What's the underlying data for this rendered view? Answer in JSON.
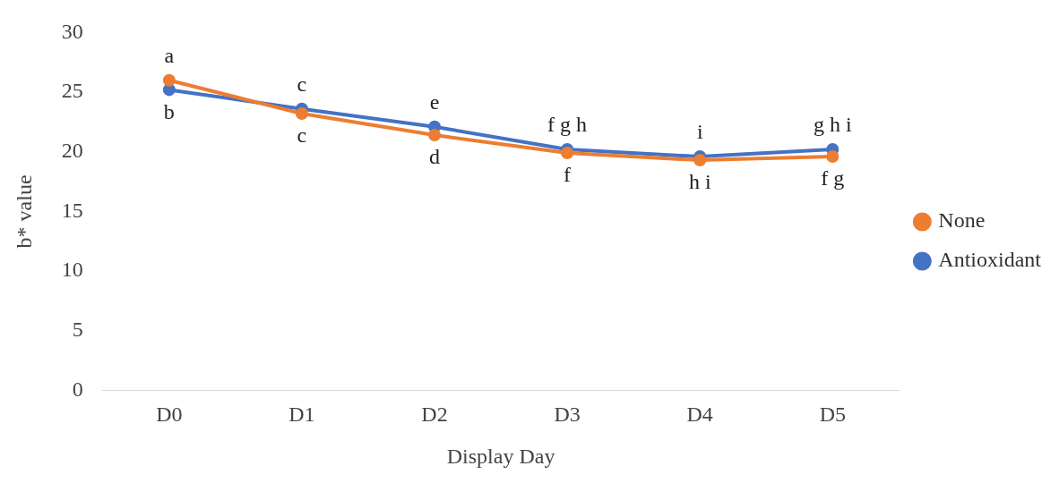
{
  "chart_data": {
    "type": "line",
    "xlabel": "Display Day",
    "ylabel": "b* value",
    "categories": [
      "D0",
      "D1",
      "D2",
      "D3",
      "D4",
      "D5"
    ],
    "series": [
      {
        "name": "Antioxidant",
        "color": "#4472c4",
        "values": [
          25.2,
          23.6,
          22.1,
          20.2,
          19.6,
          20.2
        ]
      },
      {
        "name": "None",
        "color": "#ed7d31",
        "values": [
          26.0,
          23.2,
          21.4,
          19.9,
          19.3,
          19.6
        ]
      }
    ],
    "ylim": [
      0,
      30
    ],
    "yticks": [
      0,
      5,
      10,
      15,
      20,
      25,
      30
    ],
    "grid": false,
    "legend": "right",
    "marker": "circle",
    "line_style": "solid",
    "annotations": [
      {
        "text": "a",
        "x": "D0",
        "y": 26.0
      },
      {
        "text": "b",
        "x": "D0",
        "y": 25.2
      },
      {
        "text": "c",
        "x": "D1",
        "y": 23.6
      },
      {
        "text": "c",
        "x": "D1",
        "y": 23.2
      },
      {
        "text": "e",
        "x": "D2",
        "y": 22.1
      },
      {
        "text": "d",
        "x": "D2",
        "y": 21.4
      },
      {
        "text": "f g h",
        "x": "D3",
        "y": 20.2
      },
      {
        "text": "f",
        "x": "D3",
        "y": 19.9
      },
      {
        "text": "i",
        "x": "D4",
        "y": 19.6
      },
      {
        "text": "h i",
        "x": "D4",
        "y": 19.3
      },
      {
        "text": "g h i",
        "x": "D5",
        "y": 20.2
      },
      {
        "text": "f g",
        "x": "D5",
        "y": 19.6
      }
    ]
  }
}
